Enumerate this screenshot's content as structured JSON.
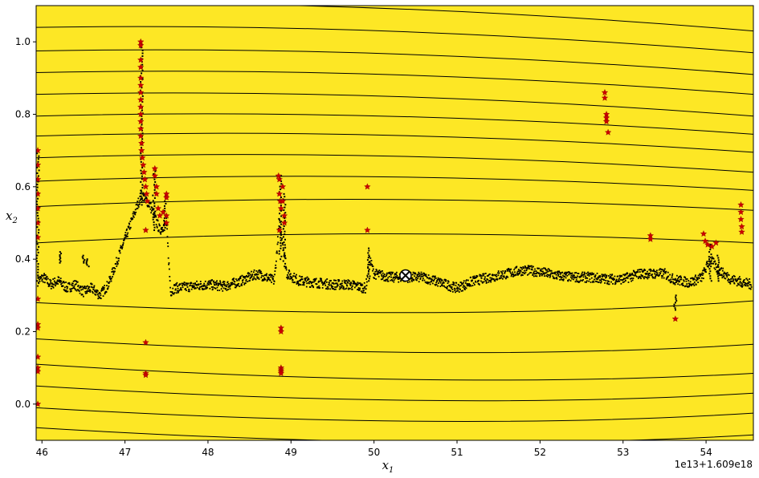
{
  "chart_data": {
    "type": "scatter",
    "title": "",
    "xlabel": "x",
    "xlabel_sub": "1",
    "ylabel": "x",
    "ylabel_sub": "2",
    "x_offset_text": "1e13+1.609e18",
    "xlim": [
      45.93,
      54.57
    ],
    "ylim": [
      -0.1,
      1.1
    ],
    "x_ticks": [
      46,
      47,
      48,
      49,
      50,
      51,
      52,
      53,
      54
    ],
    "x_tick_labels": [
      "46",
      "47",
      "48",
      "49",
      "50",
      "51",
      "52",
      "53",
      "54"
    ],
    "y_ticks": [
      0.0,
      0.2,
      0.4,
      0.6,
      0.8,
      1.0
    ],
    "y_tick_labels": [
      "0.0",
      "0.2",
      "0.4",
      "0.6",
      "0.8",
      "1.0"
    ],
    "grid": false,
    "legend": "none",
    "background_color": "#fde725",
    "contour_color": "#000000",
    "contour_levels": {
      "upper_left_y": [
        0.445,
        0.545,
        0.615,
        0.68,
        0.74,
        0.795,
        0.855,
        0.915,
        0.975,
        1.04,
        1.105
      ],
      "upper_right_y": [
        0.445,
        0.535,
        0.59,
        0.64,
        0.695,
        0.745,
        0.795,
        0.855,
        0.91,
        0.97,
        1.03
      ],
      "lower_left_y": [
        0.28,
        0.18,
        0.11,
        0.05,
        -0.01,
        -0.065
      ],
      "lower_right_y": [
        0.285,
        0.165,
        0.085,
        0.03,
        -0.025,
        -0.085
      ],
      "upper_center_x": 50.0,
      "lower_center_x": 50.9
    },
    "main_trace": {
      "name": "",
      "color": "#000000",
      "marker": "dot",
      "path": [
        [
          45.95,
          0.34
        ],
        [
          46.02,
          0.35
        ],
        [
          46.1,
          0.33
        ],
        [
          46.2,
          0.34
        ],
        [
          46.3,
          0.32
        ],
        [
          46.4,
          0.33
        ],
        [
          46.5,
          0.31
        ],
        [
          46.6,
          0.32
        ],
        [
          46.7,
          0.3
        ],
        [
          46.8,
          0.33
        ],
        [
          47.2,
          0.58
        ],
        [
          47.3,
          0.55
        ],
        [
          47.35,
          0.52
        ],
        [
          47.42,
          0.48
        ],
        [
          47.5,
          0.5
        ],
        [
          47.55,
          0.31
        ],
        [
          47.6,
          0.32
        ],
        [
          47.8,
          0.325
        ],
        [
          48.0,
          0.33
        ],
        [
          48.2,
          0.325
        ],
        [
          48.4,
          0.34
        ],
        [
          48.6,
          0.36
        ],
        [
          48.8,
          0.34
        ],
        [
          48.86,
          0.5
        ],
        [
          48.9,
          0.45
        ],
        [
          48.95,
          0.36
        ],
        [
          49.1,
          0.34
        ],
        [
          49.3,
          0.335
        ],
        [
          49.5,
          0.33
        ],
        [
          49.7,
          0.33
        ],
        [
          49.9,
          0.32
        ],
        [
          49.95,
          0.4
        ],
        [
          50.0,
          0.36
        ],
        [
          50.2,
          0.35
        ],
        [
          50.4,
          0.35
        ],
        [
          50.6,
          0.35
        ],
        [
          50.8,
          0.335
        ],
        [
          51.0,
          0.32
        ],
        [
          51.2,
          0.34
        ],
        [
          51.4,
          0.35
        ],
        [
          51.6,
          0.36
        ],
        [
          51.8,
          0.37
        ],
        [
          52.0,
          0.365
        ],
        [
          52.2,
          0.355
        ],
        [
          52.4,
          0.35
        ],
        [
          52.6,
          0.35
        ],
        [
          52.8,
          0.345
        ],
        [
          53.0,
          0.345
        ],
        [
          53.2,
          0.36
        ],
        [
          53.4,
          0.36
        ],
        [
          53.5,
          0.36
        ],
        [
          53.6,
          0.345
        ],
        [
          53.8,
          0.335
        ],
        [
          53.95,
          0.35
        ],
        [
          54.05,
          0.4
        ],
        [
          54.15,
          0.37
        ],
        [
          54.3,
          0.345
        ],
        [
          54.45,
          0.335
        ],
        [
          54.55,
          0.33
        ]
      ],
      "band_half_height": 0.014
    },
    "spikes": [
      {
        "x": 45.95,
        "y_from": 0.34,
        "y_to": 0.7
      },
      {
        "x": 47.2,
        "y_from": 0.55,
        "y_to": 1.0
      },
      {
        "x": 47.35,
        "y_from": 0.48,
        "y_to": 0.65
      },
      {
        "x": 47.48,
        "y_from": 0.48,
        "y_to": 0.58
      },
      {
        "x": 48.87,
        "y_from": 0.4,
        "y_to": 0.63
      },
      {
        "x": 48.92,
        "y_from": 0.38,
        "y_to": 0.58
      },
      {
        "x": 49.94,
        "y_from": 0.34,
        "y_to": 0.43
      },
      {
        "x": 54.05,
        "y_from": 0.34,
        "y_to": 0.44
      },
      {
        "x": 54.15,
        "y_from": 0.34,
        "y_to": 0.41
      },
      {
        "x": 53.63,
        "y_from": 0.26,
        "y_to": 0.3
      },
      {
        "x": 46.22,
        "y_from": 0.39,
        "y_to": 0.42
      },
      {
        "x": 46.5,
        "y_from": 0.39,
        "y_to": 0.41
      },
      {
        "x": 46.55,
        "y_from": 0.38,
        "y_to": 0.4
      }
    ],
    "stars": {
      "name": "",
      "color": "#cc0000",
      "marker": "star",
      "points": [
        [
          45.95,
          0.7
        ],
        [
          45.95,
          0.66
        ],
        [
          45.95,
          0.62
        ],
        [
          45.95,
          0.58
        ],
        [
          45.95,
          0.54
        ],
        [
          45.95,
          0.5
        ],
        [
          45.95,
          0.46
        ],
        [
          45.95,
          0.29
        ],
        [
          45.95,
          0.22
        ],
        [
          45.95,
          0.21
        ],
        [
          45.95,
          0.13
        ],
        [
          45.95,
          0.1
        ],
        [
          45.95,
          0.09
        ],
        [
          45.95,
          0.0
        ],
        [
          47.19,
          1.0
        ],
        [
          47.19,
          0.99
        ],
        [
          47.19,
          0.95
        ],
        [
          47.19,
          0.93
        ],
        [
          47.19,
          0.9
        ],
        [
          47.19,
          0.88
        ],
        [
          47.19,
          0.86
        ],
        [
          47.19,
          0.84
        ],
        [
          47.19,
          0.82
        ],
        [
          47.19,
          0.8
        ],
        [
          47.19,
          0.78
        ],
        [
          47.19,
          0.76
        ],
        [
          47.19,
          0.74
        ],
        [
          47.2,
          0.72
        ],
        [
          47.2,
          0.7
        ],
        [
          47.21,
          0.68
        ],
        [
          47.22,
          0.66
        ],
        [
          47.23,
          0.64
        ],
        [
          47.24,
          0.62
        ],
        [
          47.25,
          0.6
        ],
        [
          47.26,
          0.58
        ],
        [
          47.27,
          0.56
        ],
        [
          47.25,
          0.48
        ],
        [
          47.25,
          0.17
        ],
        [
          47.25,
          0.085
        ],
        [
          47.25,
          0.08
        ],
        [
          47.36,
          0.65
        ],
        [
          47.36,
          0.63
        ],
        [
          47.38,
          0.6
        ],
        [
          47.38,
          0.58
        ],
        [
          47.4,
          0.54
        ],
        [
          47.42,
          0.52
        ],
        [
          47.46,
          0.53
        ],
        [
          47.5,
          0.58
        ],
        [
          47.5,
          0.57
        ],
        [
          47.5,
          0.52
        ],
        [
          47.5,
          0.5
        ],
        [
          48.85,
          0.63
        ],
        [
          48.86,
          0.62
        ],
        [
          48.86,
          0.58
        ],
        [
          48.87,
          0.56
        ],
        [
          48.88,
          0.54
        ],
        [
          48.86,
          0.48
        ],
        [
          48.9,
          0.6
        ],
        [
          48.9,
          0.56
        ],
        [
          48.92,
          0.52
        ],
        [
          48.92,
          0.5
        ],
        [
          48.88,
          0.21
        ],
        [
          48.88,
          0.2
        ],
        [
          48.88,
          0.1
        ],
        [
          48.88,
          0.095
        ],
        [
          48.88,
          0.09
        ],
        [
          48.88,
          0.085
        ],
        [
          49.92,
          0.6
        ],
        [
          49.92,
          0.48
        ],
        [
          52.78,
          0.86
        ],
        [
          52.78,
          0.845
        ],
        [
          52.8,
          0.8
        ],
        [
          52.8,
          0.79
        ],
        [
          52.8,
          0.78
        ],
        [
          52.82,
          0.75
        ],
        [
          53.33,
          0.465
        ],
        [
          53.33,
          0.455
        ],
        [
          53.63,
          0.235
        ],
        [
          53.97,
          0.47
        ],
        [
          53.99,
          0.45
        ],
        [
          54.02,
          0.44
        ],
        [
          54.07,
          0.435
        ],
        [
          54.12,
          0.445
        ],
        [
          54.42,
          0.55
        ],
        [
          54.42,
          0.53
        ],
        [
          54.42,
          0.51
        ],
        [
          54.43,
          0.49
        ],
        [
          54.43,
          0.475
        ]
      ]
    },
    "marked_point": {
      "x": 50.38,
      "y": 0.355,
      "marker": "circle-x"
    }
  }
}
